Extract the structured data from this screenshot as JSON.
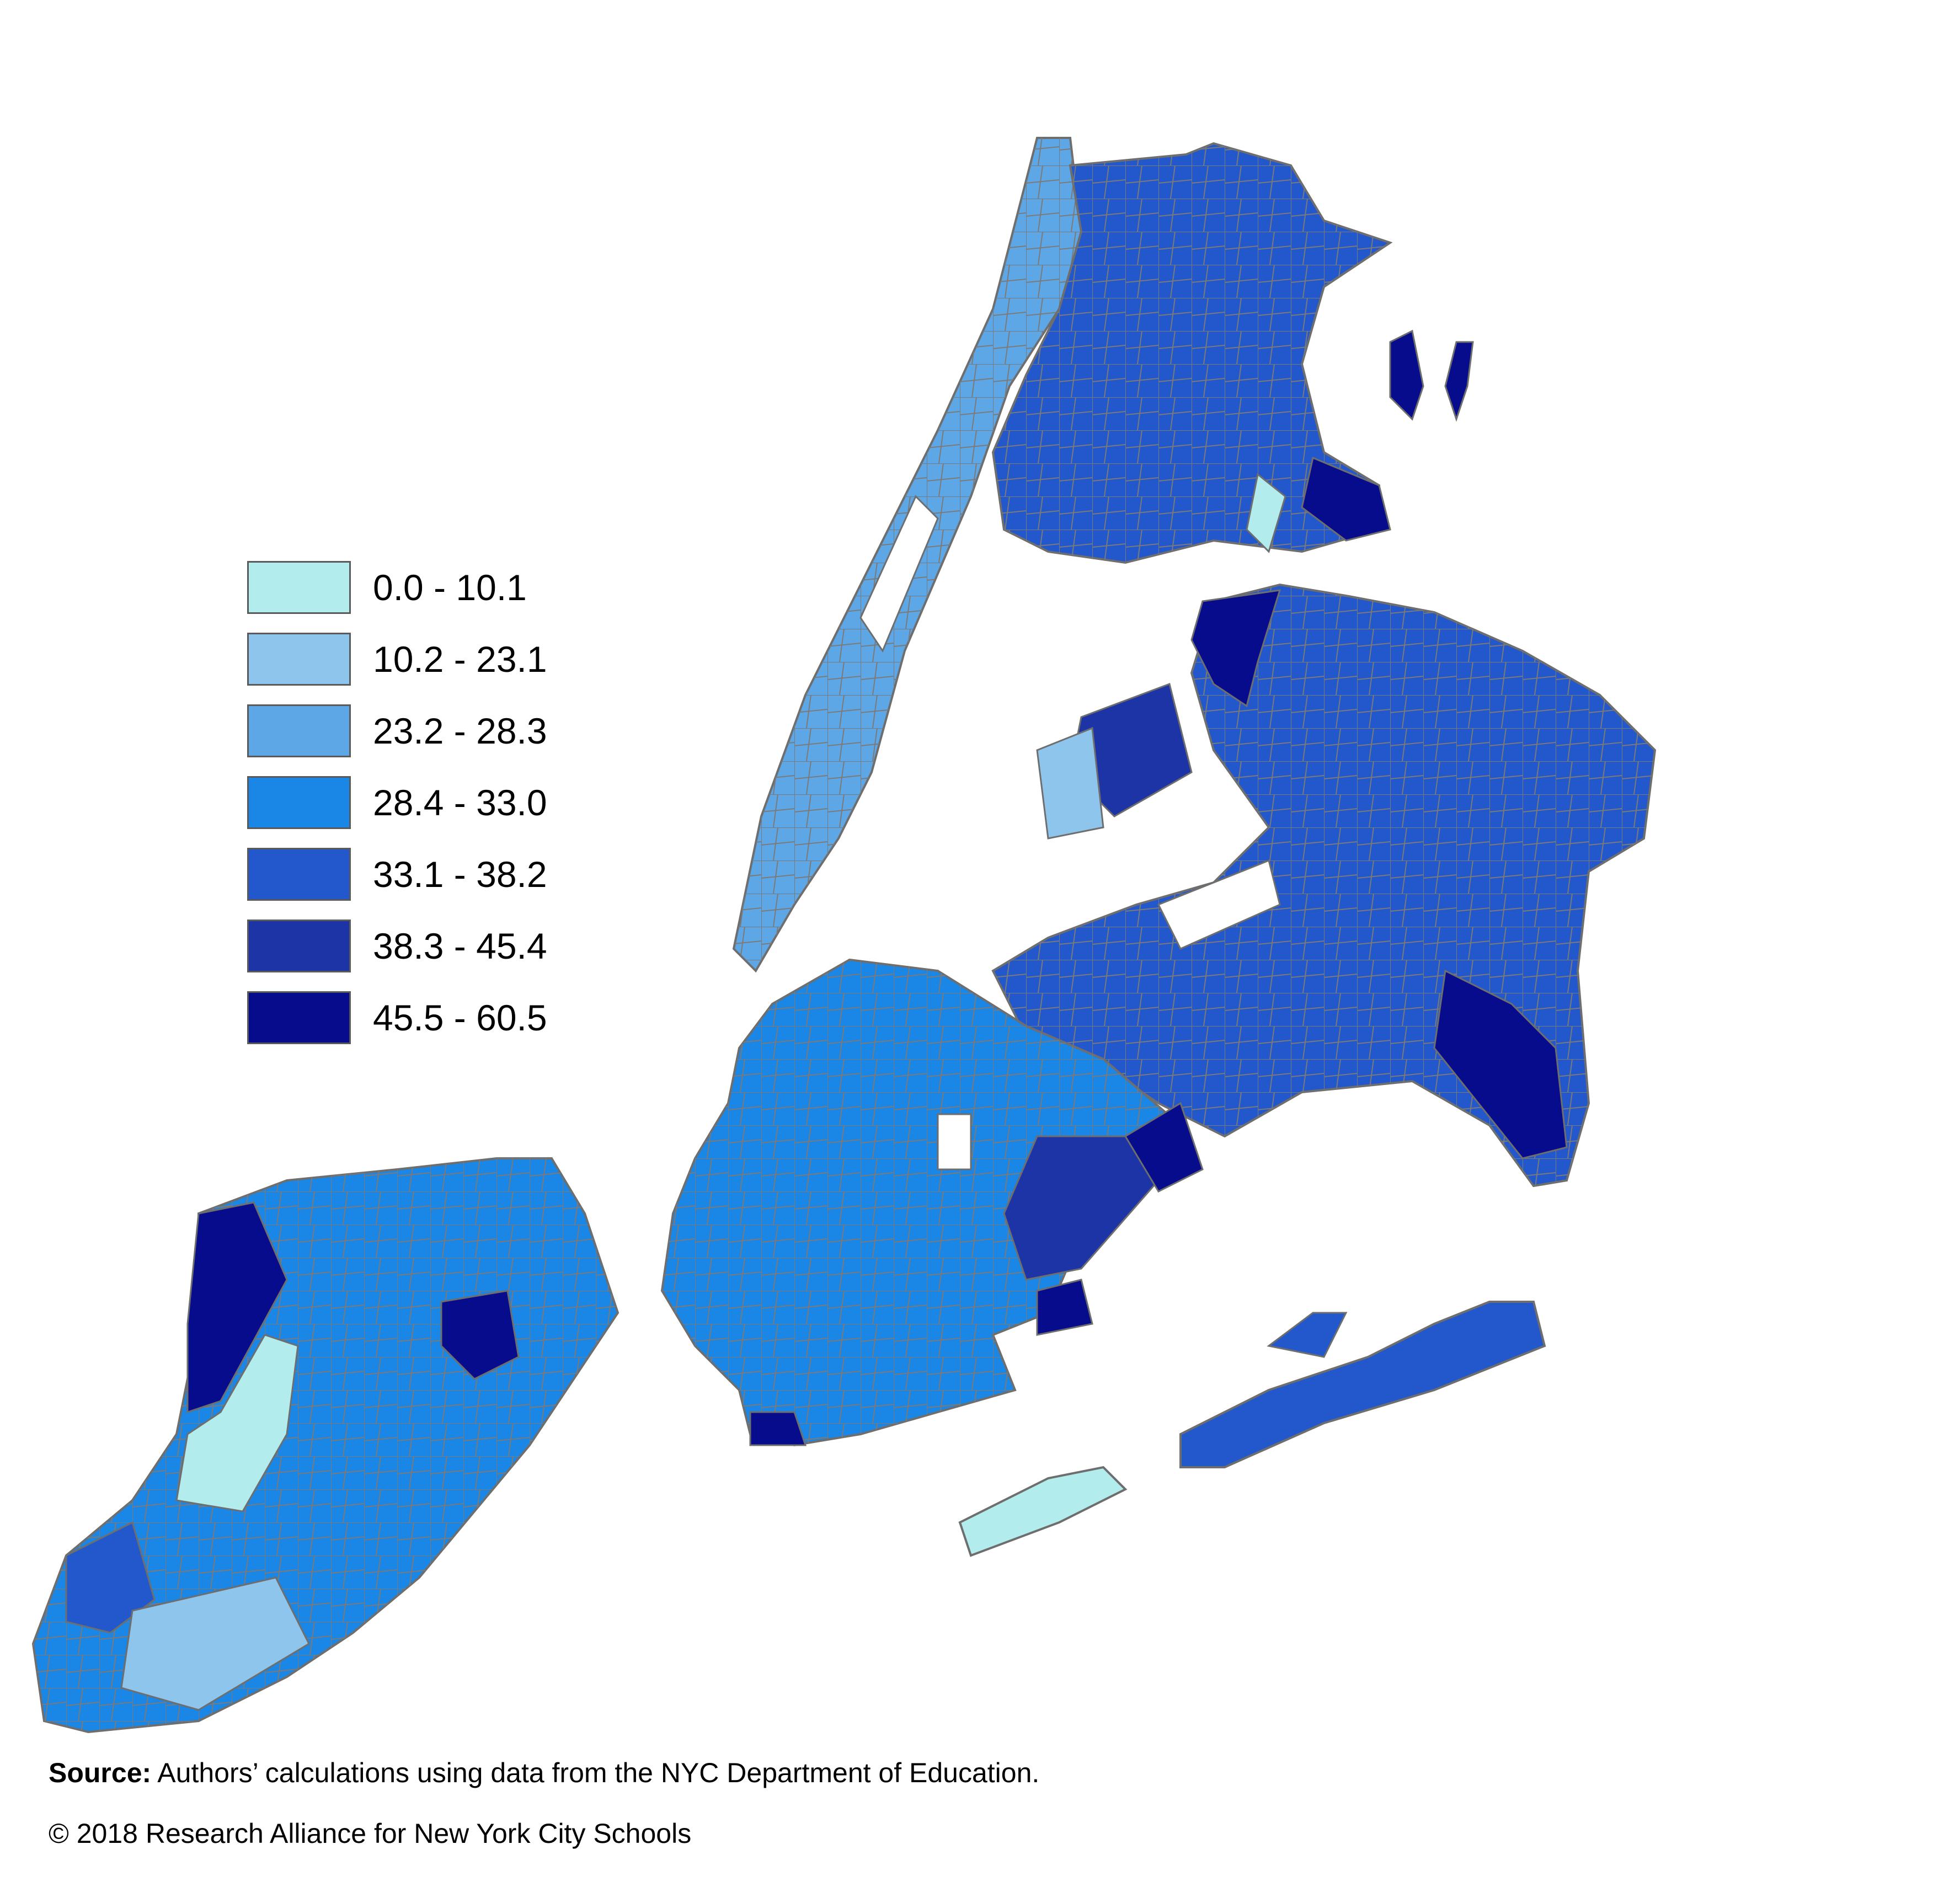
{
  "legend": {
    "items": [
      {
        "label": "0.0 - 10.1",
        "color": "#b2ecec"
      },
      {
        "label": "10.2 - 23.1",
        "color": "#8ec5ec"
      },
      {
        "label": "23.2 - 28.3",
        "color": "#5ea7e6"
      },
      {
        "label": "28.4 - 33.0",
        "color": "#1a86e6"
      },
      {
        "label": "33.1 - 38.2",
        "color": "#2258cc"
      },
      {
        "label": "38.3 - 45.4",
        "color": "#1c34a6"
      },
      {
        "label": "45.5 - 60.5",
        "color": "#060c8c"
      }
    ]
  },
  "footer": {
    "source_label": "Source:",
    "source_text": " Authors’ calculations using data from the NYC Department of Education.",
    "copyright": "© 2018 Research Alliance for New York City Schools"
  },
  "colors": {
    "boundary": "#6e6e6e"
  }
}
